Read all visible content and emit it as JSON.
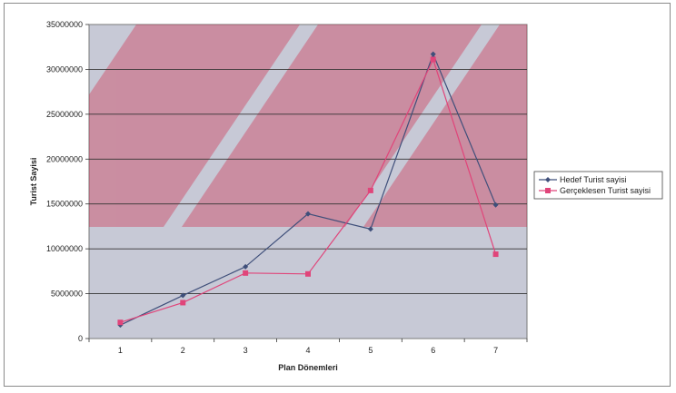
{
  "chart_data": {
    "type": "line",
    "xlabel": "Plan Dönemleri",
    "ylabel": "Turist Sayisi",
    "x": [
      1,
      2,
      3,
      4,
      5,
      6,
      7
    ],
    "ylim": [
      0,
      35000000
    ],
    "yticks": [
      0,
      5000000,
      10000000,
      15000000,
      20000000,
      25000000,
      30000000,
      35000000
    ],
    "grid": "horizontal",
    "legend_position": "right",
    "series": [
      {
        "name": "Hedef Turist sayisi",
        "color": "#3f4f7a",
        "marker": "diamond",
        "values": [
          1500000,
          4800000,
          8000000,
          13900000,
          12200000,
          31700000,
          14900000
        ]
      },
      {
        "name": "Gerçeklesen Turist sayisi",
        "color": "#e0457a",
        "marker": "square",
        "values": [
          1800000,
          4000000,
          7300000,
          7200000,
          16500000,
          31100000,
          9400000
        ]
      }
    ]
  }
}
